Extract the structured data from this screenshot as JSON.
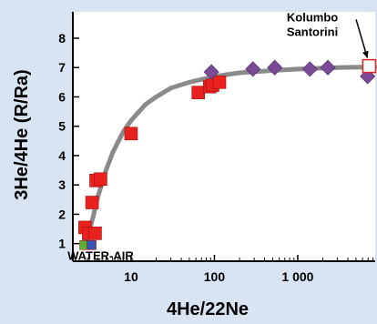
{
  "chart_data": {
    "type": "scatter",
    "title": "",
    "xlabel": "4He/22Ne",
    "ylabel": "3He/4He (R/Ra)",
    "x_scale": "log",
    "xlim": [
      2,
      8500
    ],
    "ylim": [
      0.4,
      8.9
    ],
    "x_ticks": [
      10,
      100,
      1000
    ],
    "x_tick_labels": [
      "10",
      "100",
      "1 000"
    ],
    "y_ticks": [
      1,
      2,
      3,
      4,
      5,
      6,
      7,
      8
    ],
    "y_tick_labels": [
      "1",
      "2",
      "3",
      "4",
      "5",
      "6",
      "7",
      "8"
    ],
    "grid": false,
    "series": [
      {
        "marker": "square",
        "color": "#e8211e",
        "points": [
          [
            2.8,
            1.55
          ],
          [
            3.1,
            1.35
          ],
          [
            3.7,
            1.35
          ],
          [
            3.4,
            2.4
          ],
          [
            3.8,
            3.15
          ],
          [
            4.3,
            3.2
          ],
          [
            10,
            4.75
          ],
          [
            64,
            6.15
          ],
          [
            88,
            6.35
          ],
          [
            95,
            6.4
          ],
          [
            115,
            6.5
          ]
        ]
      },
      {
        "marker": "diamond",
        "color": "#7a4a96",
        "points": [
          [
            92,
            6.85
          ],
          [
            290,
            6.95
          ],
          [
            530,
            7.0
          ],
          [
            1400,
            6.95
          ],
          [
            2300,
            7.0
          ],
          [
            6900,
            6.7
          ]
        ]
      },
      {
        "marker": "square",
        "color": "#ffffff",
        "points": [
          [
            7200,
            7.05
          ]
        ]
      },
      {
        "marker": "square",
        "color": "#5bb032",
        "points": [
          [
            2.75,
            0.95
          ]
        ]
      },
      {
        "marker": "square",
        "color": "#3455b5",
        "points": [
          [
            3.35,
            0.95
          ]
        ]
      }
    ],
    "mixing_curve": [
      [
        2.7,
        1.0
      ],
      [
        3.0,
        1.25
      ],
      [
        3.5,
        1.9
      ],
      [
        4.0,
        2.6
      ],
      [
        5.0,
        3.5
      ],
      [
        6.0,
        4.1
      ],
      [
        8.0,
        4.8
      ],
      [
        10,
        5.2
      ],
      [
        15,
        5.75
      ],
      [
        20,
        6.0
      ],
      [
        30,
        6.3
      ],
      [
        50,
        6.5
      ],
      [
        100,
        6.7
      ],
      [
        200,
        6.82
      ],
      [
        500,
        6.9
      ],
      [
        1000,
        6.95
      ],
      [
        3000,
        7.0
      ],
      [
        8500,
        7.02
      ]
    ],
    "annotations": [
      {
        "text": "WATER-AIR",
        "x": 4.3,
        "y": 0.6
      },
      {
        "text": "Kolumbo",
        "x": 1500,
        "y": 8.7
      },
      {
        "text": "Santorini",
        "x": 1500,
        "y": 8.2
      }
    ]
  }
}
